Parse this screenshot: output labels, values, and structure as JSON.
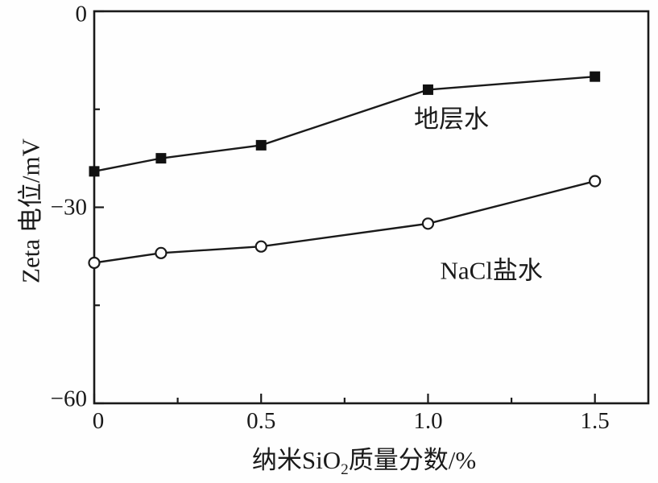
{
  "figure": {
    "background": "#fefefe",
    "line_color": "#1a1a1a",
    "marker_fill": "#111111",
    "marker_open_fill": "#ffffff"
  },
  "chart_data": {
    "type": "line",
    "title": "",
    "xlabel": "纳米SiO₂质量分数/%",
    "xlabel_parts": {
      "pre": "纳米SiO",
      "sub": "2",
      "post": "质量分数/%"
    },
    "ylabel": "Zeta 电位/mV",
    "xlim": [
      0,
      1.66
    ],
    "ylim": [
      -60,
      0
    ],
    "grid": false,
    "legend": "inline-labels",
    "x_major_ticks": [
      0,
      0.5,
      1.0,
      1.5
    ],
    "x_major_tick_labels": [
      "0",
      "0.5",
      "1.0",
      "1.5"
    ],
    "x_minor_ticks": [
      0.25,
      0.75,
      1.25
    ],
    "y_major_ticks": [
      0,
      -30,
      -60
    ],
    "y_major_tick_labels": [
      "0",
      "−30",
      "−60"
    ],
    "y_minor_ticks": [
      -15,
      -45
    ],
    "x": [
      0,
      0.2,
      0.5,
      1.0,
      1.5
    ],
    "series": [
      {
        "name": "地层水",
        "marker": "filled-square",
        "values": [
          -24.5,
          -22.5,
          -20.5,
          -12,
          -10
        ],
        "label": {
          "text": "地层水",
          "x": 1.07,
          "y": -16.5
        }
      },
      {
        "name": "NaCl盐水",
        "marker": "open-circle",
        "values": [
          -38.5,
          -37,
          -36,
          -32.5,
          -26
        ],
        "label": {
          "text": "NaCl盐水",
          "x": 1.19,
          "y": -39.7
        }
      }
    ]
  }
}
